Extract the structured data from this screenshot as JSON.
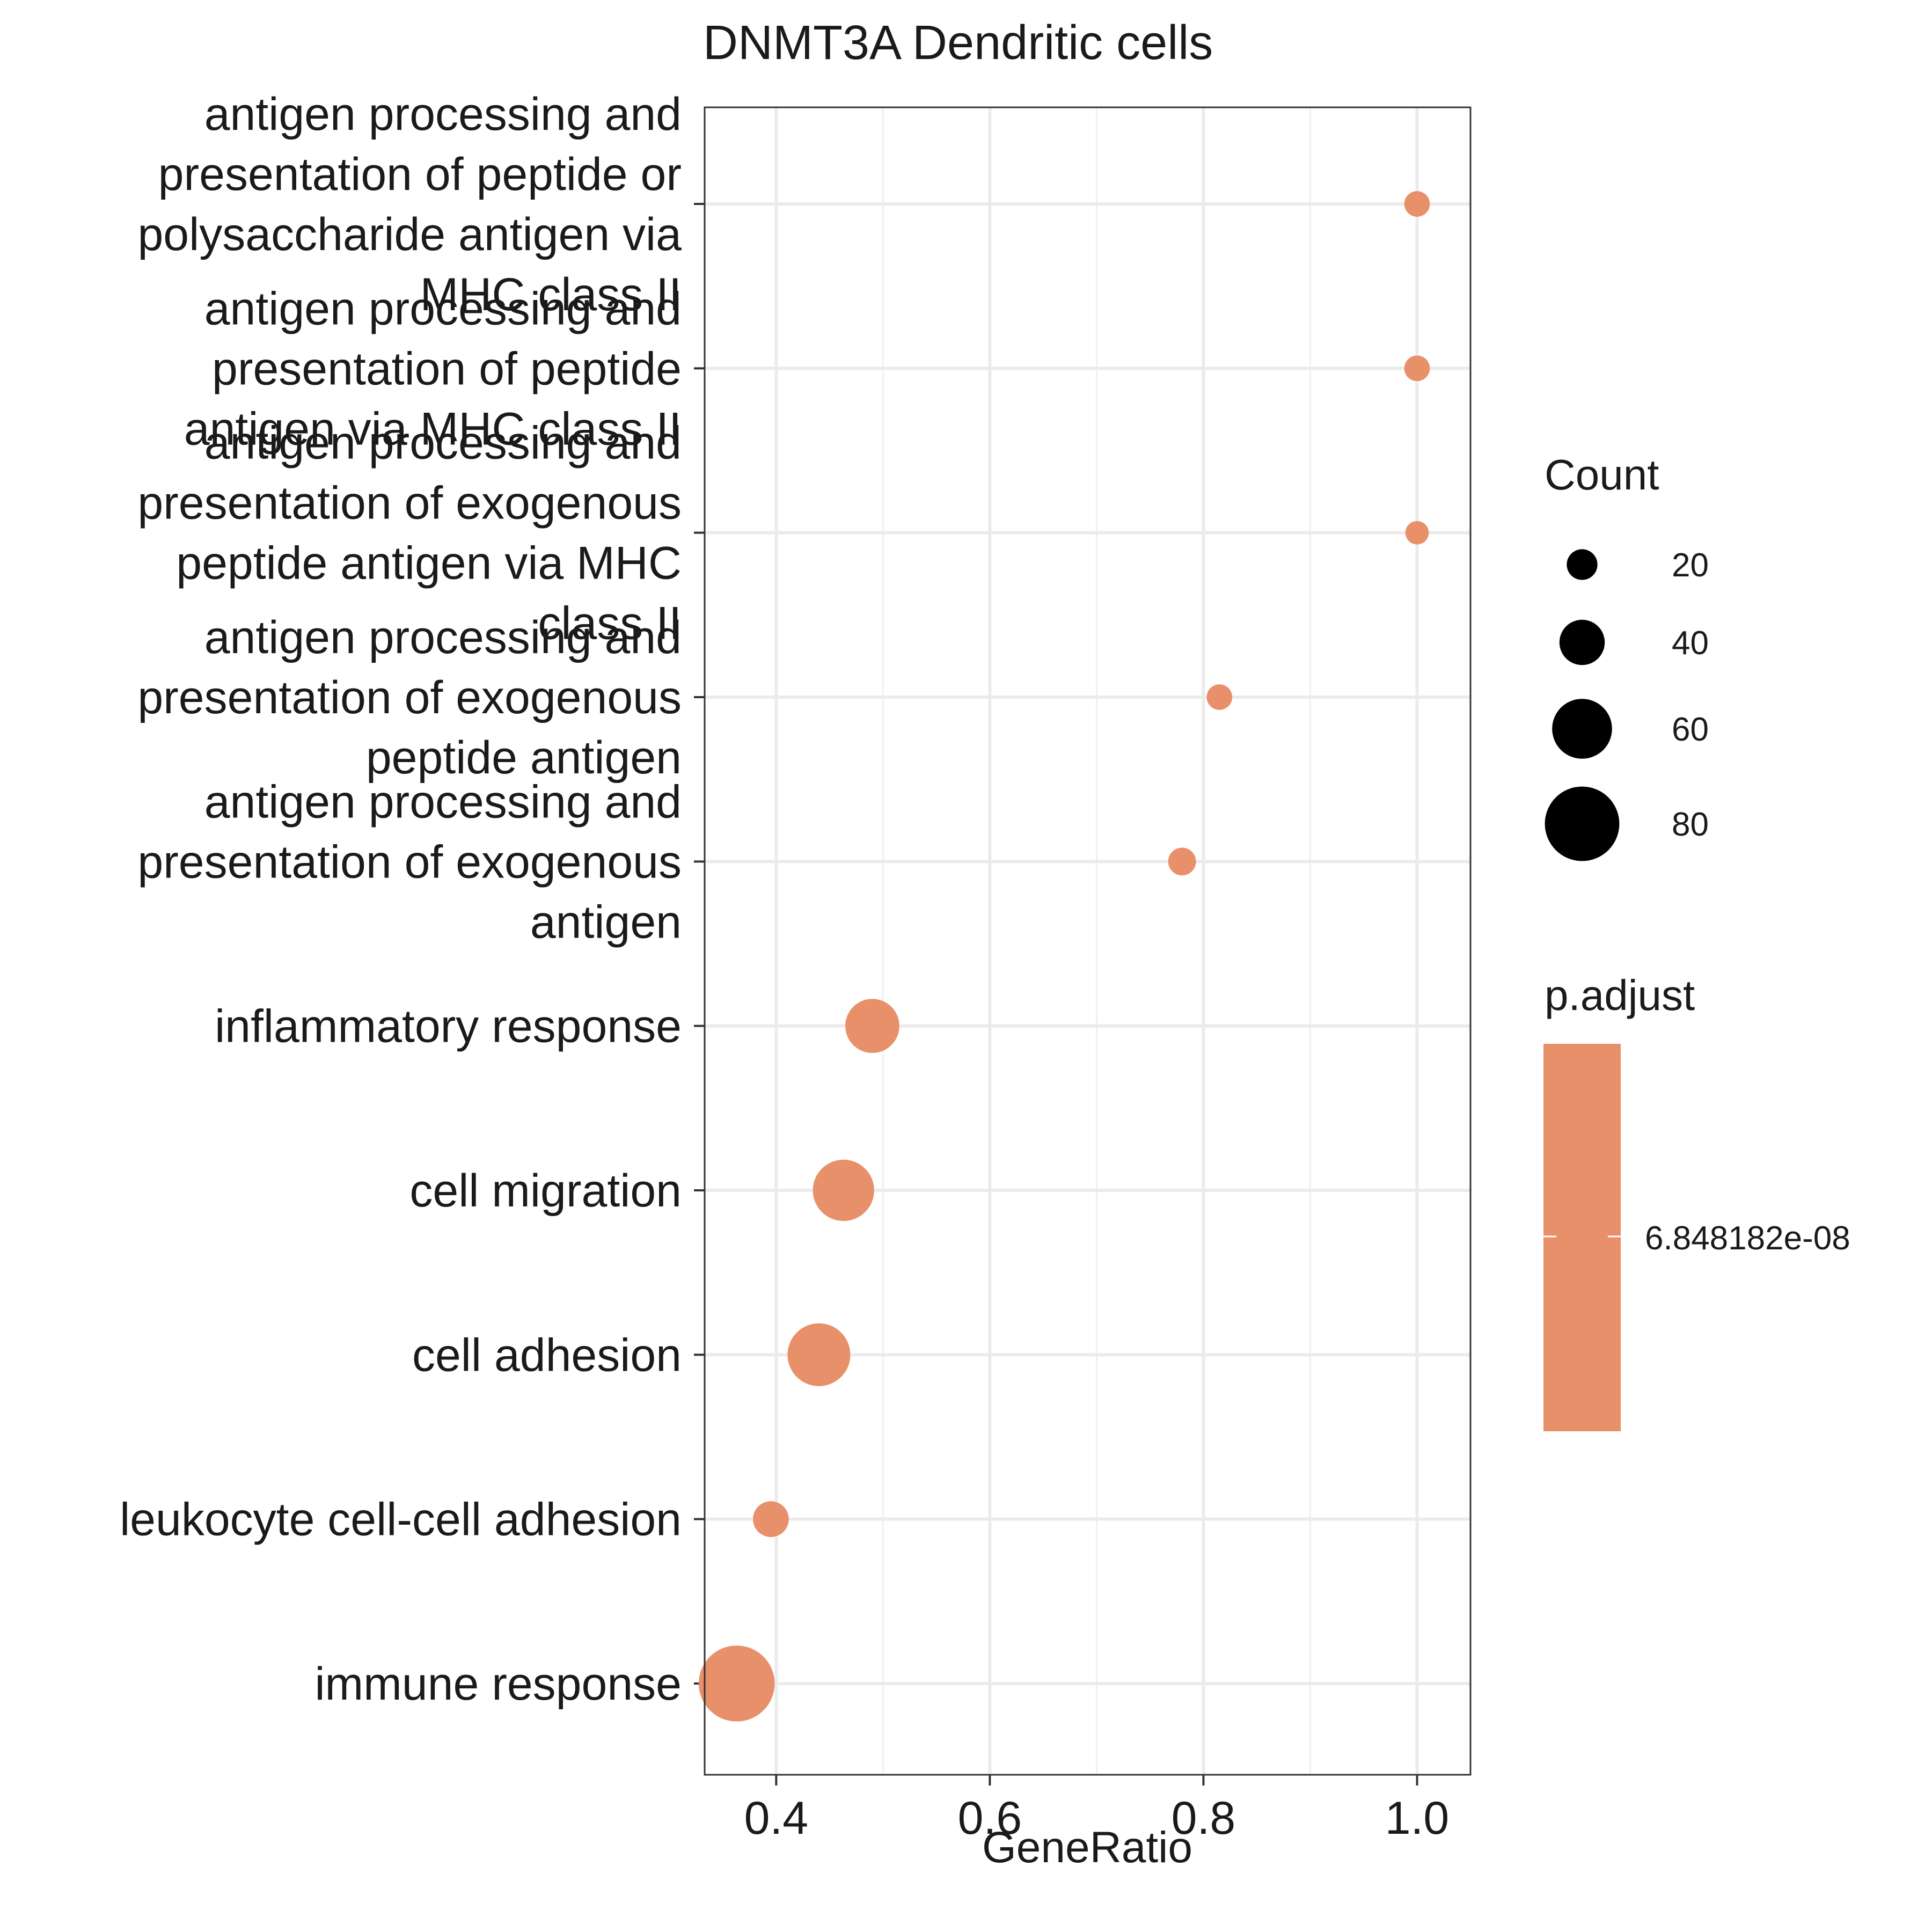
{
  "chart_data": {
    "type": "scatter",
    "title": "DNMT3A Dendritic cells",
    "xlabel": "GeneRatio",
    "ylabel": "",
    "xlim": [
      0.333,
      1.05
    ],
    "x_ticks": [
      "0.4",
      "0.6",
      "0.8",
      "1.0"
    ],
    "grid": true,
    "point_color": "#E8906A",
    "categories": [
      "antigen processing and presentation of peptide or polysaccharide antigen via MHC class II",
      "antigen processing and presentation of peptide antigen via MHC class II",
      "antigen processing and presentation of exogenous peptide antigen via MHC class II",
      "antigen processing and presentation of exogenous peptide antigen",
      "antigen processing and presentation of exogenous antigen",
      "inflammatory response",
      "cell migration",
      "cell adhesion",
      "leukocyte cell-cell adhesion",
      "immune response"
    ],
    "category_label_lines": [
      [
        "antigen processing and",
        "presentation of peptide or",
        "polysaccharide antigen via",
        "MHC class II"
      ],
      [
        "antigen processing and",
        "presentation of peptide",
        "antigen via MHC class II"
      ],
      [
        "antigen processing and",
        "presentation of exogenous",
        "peptide antigen via MHC",
        "class II"
      ],
      [
        "antigen processing and",
        "presentation of exogenous",
        "peptide antigen"
      ],
      [
        "antigen processing and",
        "presentation of exogenous",
        "antigen"
      ],
      [
        "inflammatory response"
      ],
      [
        "cell migration"
      ],
      [
        "cell adhesion"
      ],
      [
        "leukocyte cell-cell adhesion"
      ],
      [
        "immune response"
      ]
    ],
    "gene_ratio": [
      1.0,
      1.0,
      1.0,
      0.815,
      0.78,
      0.49,
      0.463,
      0.44,
      0.395,
      0.363
    ],
    "count": [
      13,
      13,
      10,
      13,
      16,
      52,
      62,
      64,
      27,
      82
    ],
    "p_adjust": [
      6.848182e-08,
      6.848182e-08,
      6.848182e-08,
      6.848182e-08,
      6.848182e-08,
      6.848182e-08,
      6.848182e-08,
      6.848182e-08,
      6.848182e-08,
      6.848182e-08
    ],
    "legend_count": {
      "title": "Count",
      "values": [
        20,
        40,
        60,
        80
      ],
      "labels": [
        "20",
        "40",
        "60",
        "80"
      ]
    },
    "legend_padjust": {
      "title": "p.adjust",
      "value_label": "6.848182e-08",
      "color": "#E8906A"
    },
    "legend_placement": "right"
  }
}
